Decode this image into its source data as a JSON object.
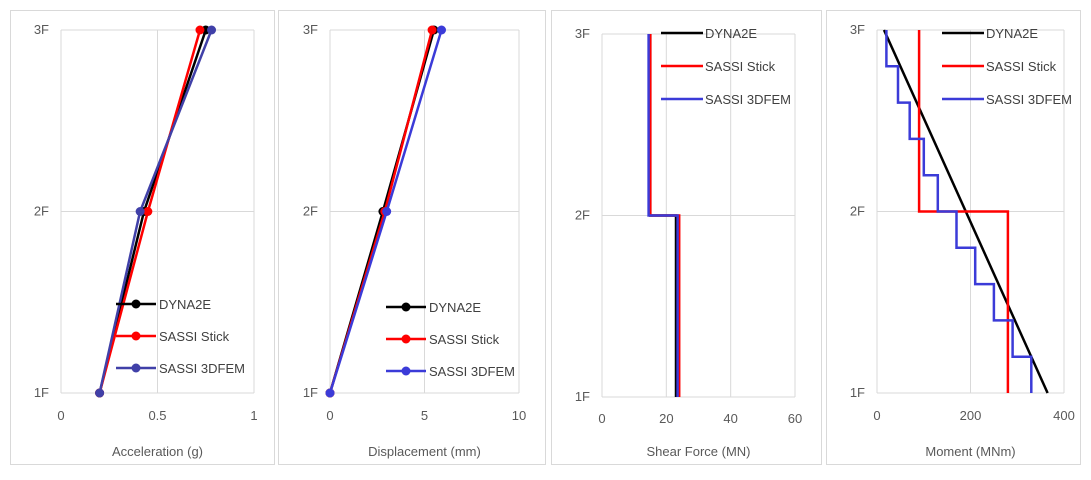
{
  "colors": {
    "dyna2e": "#000000",
    "sassi_stick": "#ff0000",
    "sassi_3dfem": "#3b3bd8",
    "sassi_3dfem_panel1": "#4040a8",
    "gridline": "#d9d9d9"
  },
  "chart_data": [
    {
      "type": "line",
      "xlabel": "Acceleration (g)",
      "xlim": [
        0,
        1
      ],
      "xticks": [
        "0",
        "0.5",
        "1"
      ],
      "ylevels": [
        "1F",
        "2F",
        "3F"
      ],
      "legend_placement": "bottom-center",
      "series": [
        {
          "name": "DYNA2E",
          "markers": true,
          "points": [
            [
              0.2,
              1
            ],
            [
              0.43,
              2
            ],
            [
              0.75,
              3
            ]
          ]
        },
        {
          "name": "SASSI Stick",
          "markers": true,
          "points": [
            [
              0.2,
              1
            ],
            [
              0.45,
              2
            ],
            [
              0.72,
              3
            ]
          ]
        },
        {
          "name": "SASSI 3DFEM",
          "markers": true,
          "points": [
            [
              0.2,
              1
            ],
            [
              0.41,
              2
            ],
            [
              0.78,
              3
            ]
          ]
        }
      ]
    },
    {
      "type": "line",
      "xlabel": "Displacement (mm)",
      "xlim": [
        0,
        10
      ],
      "xticks": [
        "0",
        "5",
        "10"
      ],
      "ylevels": [
        "1F",
        "2F",
        "3F"
      ],
      "legend_placement": "bottom-right",
      "series": [
        {
          "name": "DYNA2E",
          "markers": true,
          "points": [
            [
              0,
              1
            ],
            [
              2.8,
              2
            ],
            [
              5.5,
              3
            ]
          ]
        },
        {
          "name": "SASSI Stick",
          "markers": true,
          "points": [
            [
              0,
              1
            ],
            [
              2.9,
              2
            ],
            [
              5.4,
              3
            ]
          ]
        },
        {
          "name": "SASSI 3DFEM",
          "markers": true,
          "points": [
            [
              0,
              1
            ],
            [
              3.0,
              2
            ],
            [
              5.9,
              3
            ]
          ]
        }
      ]
    },
    {
      "type": "line",
      "xlabel": "Shear Force (MN)",
      "xlim": [
        0,
        60
      ],
      "xticks": [
        "0",
        "20",
        "40",
        "60"
      ],
      "ylevels": [
        "1F",
        "2F",
        "3F"
      ],
      "legend_placement": "top-right",
      "series": [
        {
          "name": "DYNA2E",
          "markers": false,
          "points": [
            [
              23,
              1
            ],
            [
              23,
              2
            ],
            [
              15,
              2
            ],
            [
              15,
              3
            ]
          ]
        },
        {
          "name": "SASSI Stick",
          "markers": false,
          "points": [
            [
              24,
              1
            ],
            [
              24,
              2
            ],
            [
              15,
              2
            ],
            [
              15,
              3
            ]
          ]
        },
        {
          "name": "SASSI 3DFEM",
          "markers": false,
          "points": [
            [
              23.5,
              1
            ],
            [
              23.5,
              2
            ],
            [
              14.5,
              2
            ],
            [
              14.5,
              3
            ]
          ]
        }
      ]
    },
    {
      "type": "line",
      "xlabel": "Moment (MNm)",
      "xlim": [
        0,
        400
      ],
      "xticks": [
        "0",
        "200",
        "400"
      ],
      "ylevels": [
        "1F",
        "2F",
        "3F"
      ],
      "legend_placement": "top-right",
      "series": [
        {
          "name": "DYNA2E",
          "markers": false,
          "points": [
            [
              365,
              1
            ],
            [
              15,
              3
            ]
          ]
        },
        {
          "name": "SASSI Stick",
          "markers": false,
          "points": [
            [
              280,
              1
            ],
            [
              280,
              2
            ],
            [
              90,
              2
            ],
            [
              90,
              3
            ]
          ]
        },
        {
          "name": "SASSI 3DFEM",
          "markers": false,
          "points": [
            [
              330,
              1
            ],
            [
              330,
              1.2
            ],
            [
              290,
              1.2
            ],
            [
              290,
              1.4
            ],
            [
              250,
              1.4
            ],
            [
              250,
              1.6
            ],
            [
              210,
              1.6
            ],
            [
              210,
              1.8
            ],
            [
              170,
              1.8
            ],
            [
              170,
              2.0
            ],
            [
              130,
              2.0
            ],
            [
              130,
              2.2
            ],
            [
              100,
              2.2
            ],
            [
              100,
              2.4
            ],
            [
              70,
              2.4
            ],
            [
              70,
              2.6
            ],
            [
              45,
              2.6
            ],
            [
              45,
              2.8
            ],
            [
              20,
              2.8
            ],
            [
              20,
              3.0
            ]
          ]
        }
      ]
    }
  ]
}
